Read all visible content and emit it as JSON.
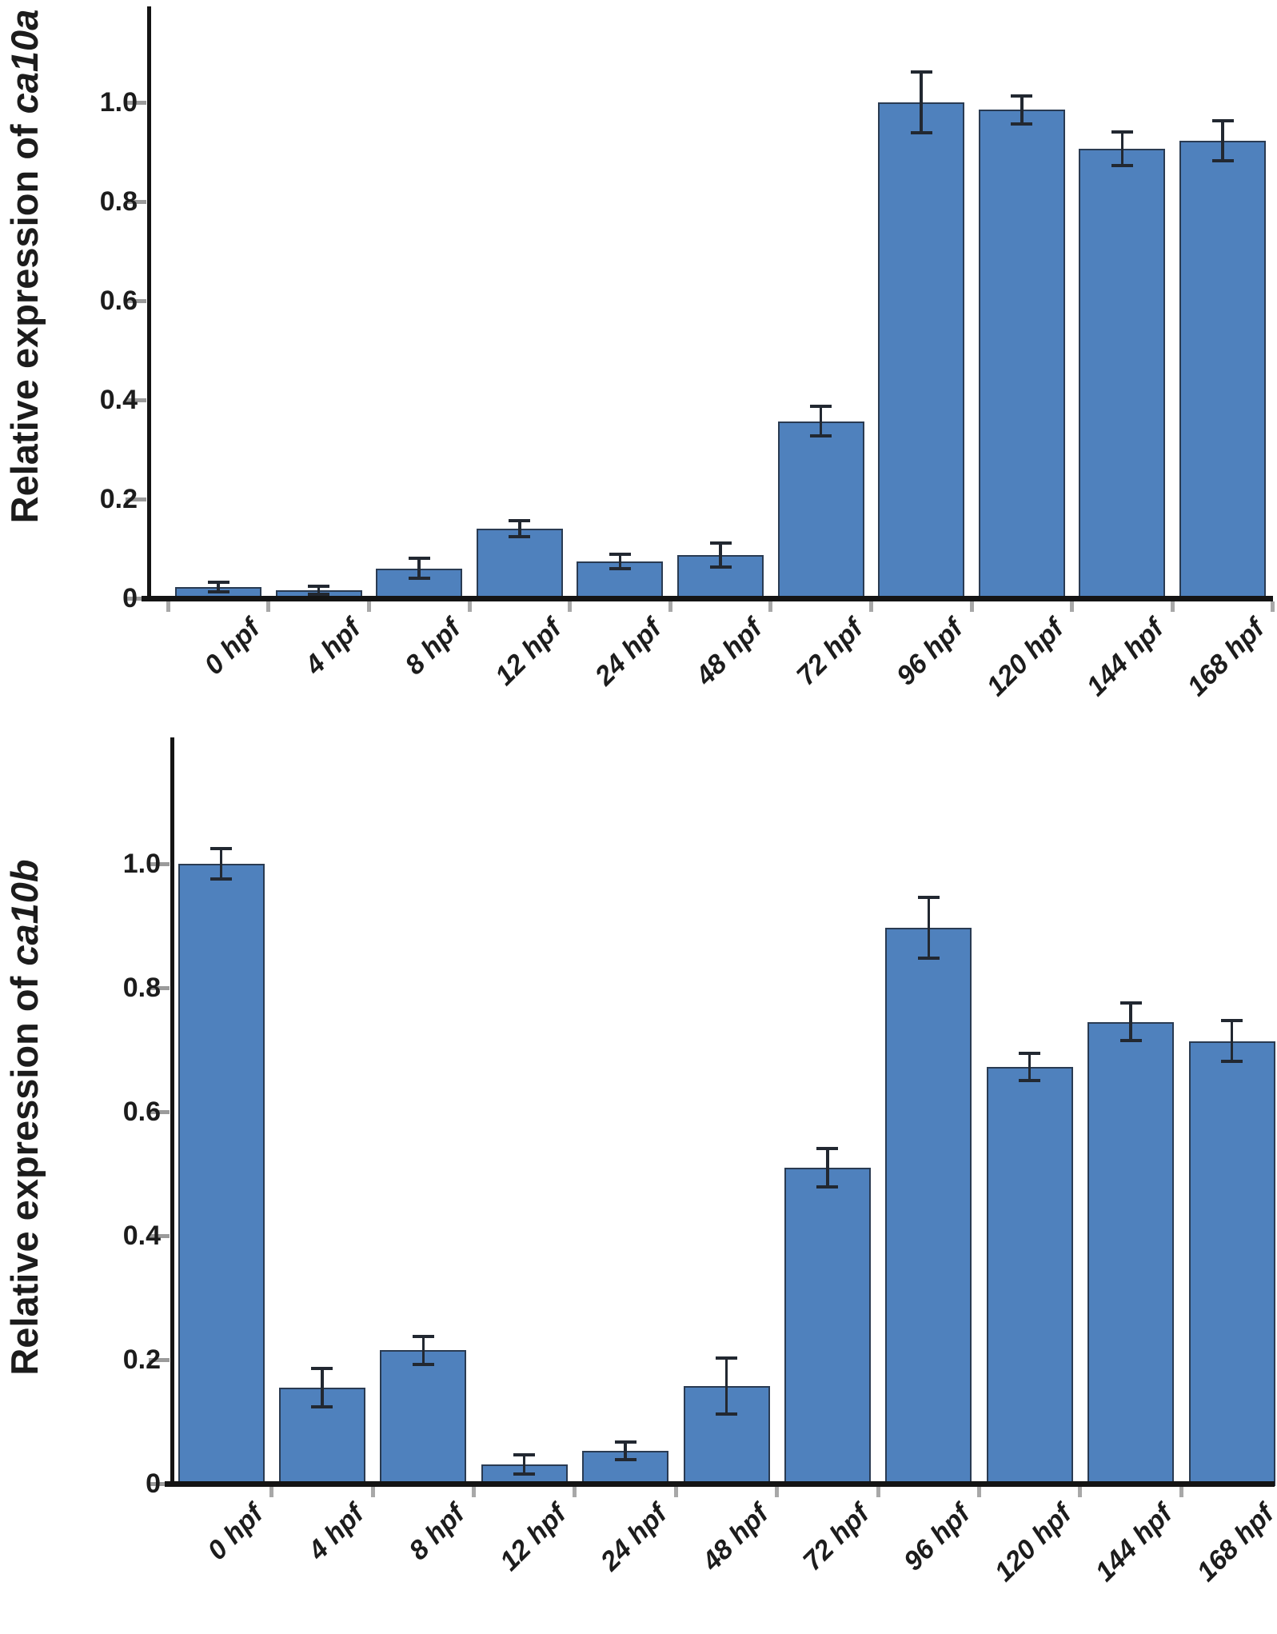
{
  "colors": {
    "bar_fill": "#4F81BD",
    "bar_border": "#2A3B52",
    "error_bar": "#222831",
    "axis": "#141414",
    "tick_mark": "#9B9B9B",
    "text": "#1C1C1C",
    "background": "#FFFFFF"
  },
  "chart_data": [
    {
      "type": "bar",
      "ylabel_prefix": "Relative expression of ",
      "ylabel_gene": "ca10a",
      "categories": [
        "0 hpf",
        "4 hpf",
        "8 hpf",
        "12 hpf",
        "24 hpf",
        "48 hpf",
        "72 hpf",
        "96 hpf",
        "120 hpf",
        "144 hpf",
        "168 hpf"
      ],
      "values": [
        0.023,
        0.016,
        0.06,
        0.141,
        0.074,
        0.087,
        0.357,
        1.0,
        0.985,
        0.907,
        0.923
      ],
      "errors": [
        0.01,
        0.008,
        0.02,
        0.016,
        0.015,
        0.024,
        0.03,
        0.061,
        0.028,
        0.034,
        0.04
      ],
      "yticks": [
        0,
        0.2,
        0.4,
        0.6,
        0.8,
        1.0
      ],
      "ytick_labels": [
        "0",
        "0.2",
        "0.4",
        "0.6",
        "0.8",
        "1.0"
      ],
      "ylim": [
        0,
        1.19
      ],
      "xlabel": "",
      "grid": false,
      "legend": "none"
    },
    {
      "type": "bar",
      "ylabel_prefix": "Relative expression of ",
      "ylabel_gene": "ca10b",
      "categories": [
        "0 hpf",
        "4 hpf",
        "8 hpf",
        "12 hpf",
        "24 hpf",
        "48 hpf",
        "72 hpf",
        "96 hpf",
        "120 hpf",
        "144 hpf",
        "168 hpf"
      ],
      "values": [
        1.0,
        0.155,
        0.215,
        0.031,
        0.053,
        0.157,
        0.51,
        0.897,
        0.672,
        0.745,
        0.714
      ],
      "errors": [
        0.025,
        0.031,
        0.023,
        0.015,
        0.014,
        0.045,
        0.031,
        0.049,
        0.022,
        0.03,
        0.033
      ],
      "yticks": [
        0,
        0.2,
        0.4,
        0.6,
        0.8,
        1.0
      ],
      "ytick_labels": [
        "0",
        "0.2",
        "0.4",
        "0.6",
        "0.8",
        "1.0"
      ],
      "ylim": [
        0,
        1.2
      ],
      "xlabel": "",
      "grid": false,
      "legend": "none"
    }
  ]
}
